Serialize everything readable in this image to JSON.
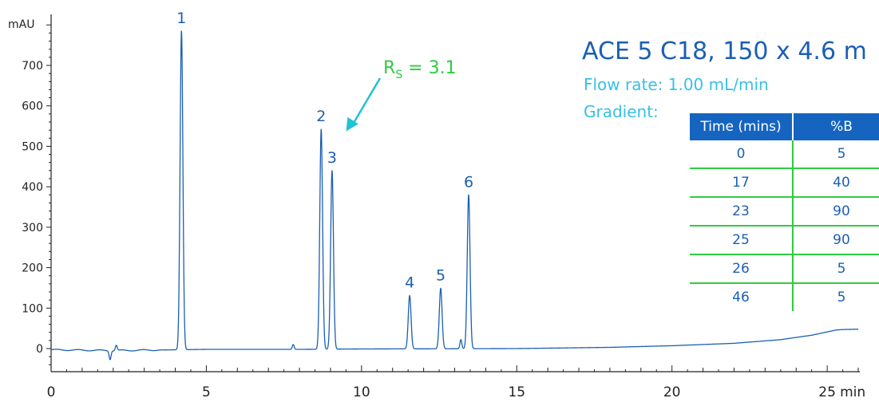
{
  "column_info": {
    "title": "ACE 5 C18, 150 x 4.6 m",
    "flow_rate": "Flow rate: 1.00 mL/min",
    "gradient_label": "Gradient:"
  },
  "gradient_table": {
    "headers": [
      "Time (mins)",
      "%B"
    ],
    "rows": [
      [
        "0",
        "5"
      ],
      [
        "17",
        "40"
      ],
      [
        "23",
        "90"
      ],
      [
        "25",
        "90"
      ],
      [
        "26",
        "5"
      ],
      [
        "46",
        "5"
      ]
    ]
  },
  "colors": {
    "trace": "#1b5fb3",
    "annotation": "#2ecc40",
    "arrow": "#1fc3d3",
    "info_text": "#38c0e6",
    "table_header": "#1565c0"
  },
  "chart_data": {
    "type": "line",
    "title": "",
    "xlabel": "min",
    "ylabel": "mAU",
    "xlim": [
      0,
      26
    ],
    "ylim": [
      -60,
      820
    ],
    "x_ticks": [
      0,
      5,
      10,
      15,
      20,
      25
    ],
    "y_ticks": [
      0,
      100,
      200,
      300,
      400,
      500,
      600,
      700
    ],
    "grid": false,
    "legend": "none",
    "baseline": [
      [
        0,
        -3
      ],
      [
        1.0,
        -4
      ],
      [
        2.0,
        -5
      ],
      [
        5.0,
        -2
      ],
      [
        8.0,
        -2
      ],
      [
        10.0,
        -1
      ],
      [
        15.0,
        0
      ],
      [
        18.0,
        3
      ],
      [
        20.0,
        7
      ],
      [
        22.0,
        13
      ],
      [
        23.5,
        22
      ],
      [
        24.5,
        33
      ],
      [
        25.3,
        46
      ],
      [
        25.5,
        47
      ],
      [
        26.0,
        48
      ]
    ],
    "disturbances": [
      {
        "x": 1.9,
        "y": -26
      },
      {
        "x": 2.1,
        "y": 8
      },
      {
        "x": 7.8,
        "y": 10
      },
      {
        "x": 13.2,
        "y": 22
      }
    ],
    "peaks": [
      {
        "label": "1",
        "x": 4.2,
        "y": 785
      },
      {
        "label": "2",
        "x": 8.7,
        "y": 542
      },
      {
        "label": "3",
        "x": 9.05,
        "y": 440
      },
      {
        "label": "4",
        "x": 11.55,
        "y": 131
      },
      {
        "label": "5",
        "x": 12.55,
        "y": 149
      },
      {
        "label": "6",
        "x": 13.45,
        "y": 380
      }
    ],
    "annotations": [
      {
        "text_main": "R",
        "text_sub": "S",
        "text_rest": " = 3.1",
        "points_to_x": 9.4,
        "points_to_y": 545
      }
    ]
  }
}
